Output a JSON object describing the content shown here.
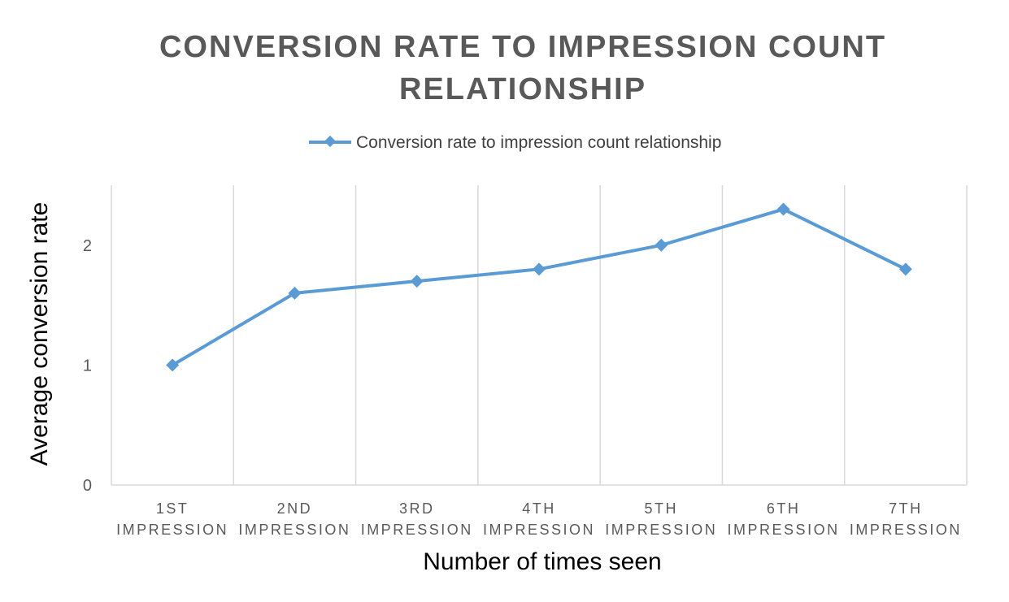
{
  "chart_data": {
    "type": "line",
    "title_lines": [
      "CONVERSION RATE TO IMPRESSION COUNT",
      "RELATIONSHIP"
    ],
    "categories": [
      [
        "1ST",
        "IMPRESSION"
      ],
      [
        "2ND",
        "IMPRESSION"
      ],
      [
        "3RD",
        "IMPRESSION"
      ],
      [
        "4TH",
        "IMPRESSION"
      ],
      [
        "5TH",
        "IMPRESSION"
      ],
      [
        "6TH",
        "IMPRESSION"
      ],
      [
        "7TH",
        "IMPRESSION"
      ]
    ],
    "series": [
      {
        "name": "Conversion rate to impression count relationship",
        "values": [
          1.0,
          1.6,
          1.7,
          1.8,
          2.0,
          2.3,
          1.8
        ],
        "color": "#5b9bd5"
      }
    ],
    "xlabel": "Number of times seen",
    "ylabel": "Average conversion rate",
    "ylim": [
      0,
      2.5
    ],
    "yticks": [
      "0",
      "1",
      "2"
    ],
    "grid": "vertical",
    "legend_position": "top",
    "gridline_color": "#d9d9d9"
  }
}
